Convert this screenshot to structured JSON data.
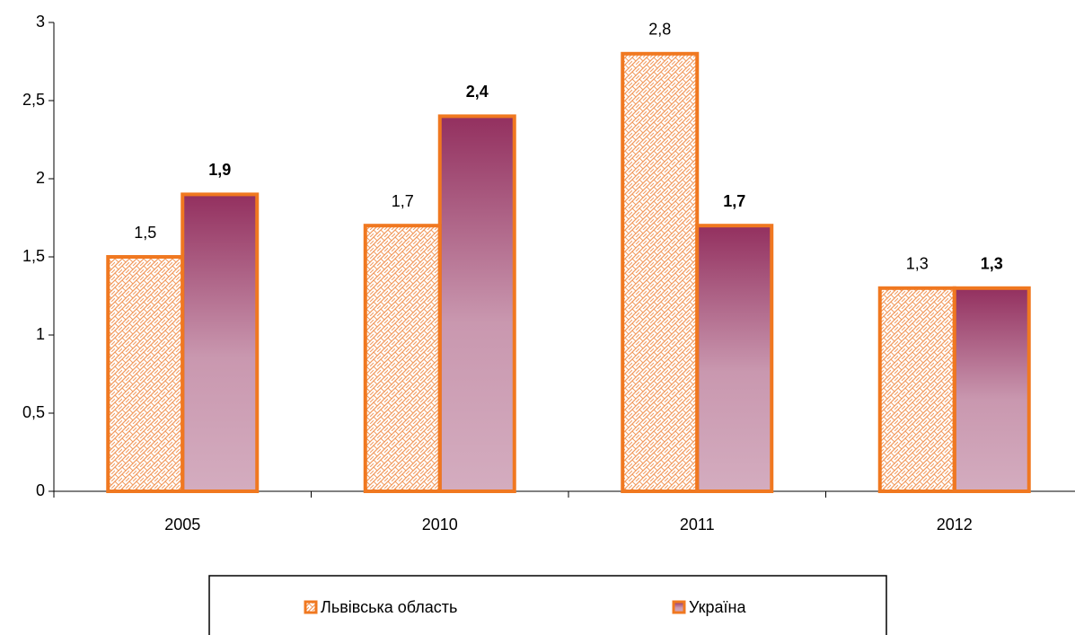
{
  "chart_data": {
    "type": "bar",
    "categories": [
      "2005",
      "2010",
      "2011",
      "2012"
    ],
    "series": [
      {
        "name": "Львівська область",
        "color": "#f29a5e",
        "values": [
          1.5,
          1.7,
          2.8,
          1.3
        ],
        "value_labels": [
          "1,5",
          "1,7",
          "2,8",
          "1,3"
        ]
      },
      {
        "name": "Україна",
        "color": "#93305f",
        "values": [
          1.9,
          2.4,
          1.7,
          1.3
        ],
        "value_labels": [
          "1,9",
          "2,4",
          "1,7",
          "1,3"
        ]
      }
    ],
    "edgecolor": "#f07820",
    "ylim": [
      0,
      3
    ],
    "yticks": [
      0,
      {
        "value": 0.5,
        "label": "0,5"
      },
      1,
      {
        "value": 1.5,
        "label": "1,5"
      },
      2,
      {
        "value": 2.5,
        "label": "2,5"
      },
      3
    ],
    "grid": false
  }
}
